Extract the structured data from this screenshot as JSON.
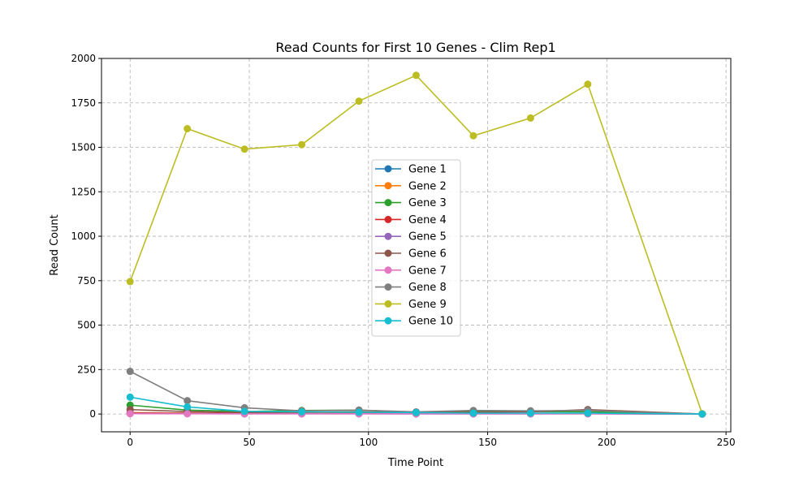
{
  "chart_data": {
    "type": "line",
    "title": "Read Counts for First 10 Genes - Clim Rep1",
    "xlabel": "Time Point",
    "ylabel": "Read Count",
    "xlim": [
      -12,
      252
    ],
    "ylim": [
      -100,
      2000
    ],
    "xticks": [
      0,
      50,
      100,
      150,
      200,
      250
    ],
    "yticks": [
      0,
      250,
      500,
      750,
      1000,
      1250,
      1500,
      1750,
      2000
    ],
    "grid": true,
    "legend_position": "center",
    "x": [
      0,
      24,
      48,
      72,
      96,
      120,
      144,
      168,
      192,
      240
    ],
    "series": [
      {
        "name": "Gene 1",
        "color": "#1f77b4",
        "values": [
          5,
          3,
          2,
          2,
          2,
          1,
          1,
          1,
          2,
          0
        ]
      },
      {
        "name": "Gene 2",
        "color": "#ff7f0e",
        "values": [
          8,
          5,
          3,
          3,
          4,
          2,
          2,
          3,
          3,
          0
        ]
      },
      {
        "name": "Gene 3",
        "color": "#2ca02c",
        "values": [
          50,
          22,
          14,
          20,
          22,
          10,
          15,
          14,
          12,
          0
        ]
      },
      {
        "name": "Gene 4",
        "color": "#d62728",
        "values": [
          6,
          4,
          3,
          2,
          3,
          2,
          2,
          2,
          3,
          0
        ]
      },
      {
        "name": "Gene 5",
        "color": "#9467bd",
        "values": [
          3,
          2,
          1,
          1,
          1,
          1,
          1,
          1,
          1,
          0
        ]
      },
      {
        "name": "Gene 6",
        "color": "#8c564b",
        "values": [
          25,
          14,
          8,
          10,
          12,
          8,
          10,
          12,
          25,
          0
        ]
      },
      {
        "name": "Gene 7",
        "color": "#e377c2",
        "values": [
          2,
          1,
          1,
          1,
          1,
          1,
          1,
          1,
          1,
          0
        ]
      },
      {
        "name": "Gene 8",
        "color": "#7f7f7f",
        "values": [
          240,
          75,
          35,
          18,
          22,
          12,
          20,
          18,
          20,
          0
        ]
      },
      {
        "name": "Gene 9",
        "color": "#bcbd22",
        "values": [
          745,
          1605,
          1490,
          1515,
          1760,
          1905,
          1565,
          1665,
          1855,
          2
        ]
      },
      {
        "name": "Gene 10",
        "color": "#17becf",
        "values": [
          95,
          40,
          15,
          12,
          10,
          8,
          5,
          5,
          5,
          0
        ]
      }
    ]
  }
}
